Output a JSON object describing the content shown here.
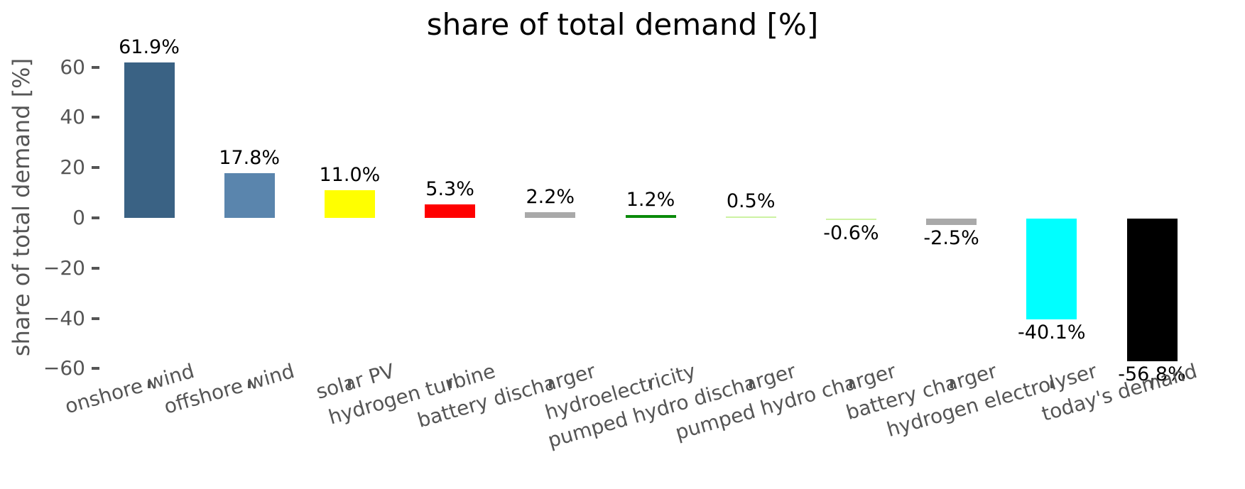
{
  "chart_data": {
    "type": "bar",
    "title": "share of total demand [%]",
    "ylabel": "share of total demand [%]",
    "xlabel": "",
    "categories": [
      "onshore wind",
      "offshore wind",
      "solar PV",
      "hydrogen turbine",
      "battery discharger",
      "hydroelectricity",
      "pumped hydro discharger",
      "pumped hydro charger",
      "battery charger",
      "hydrogen electrolyser",
      "today's demand"
    ],
    "values": [
      61.9,
      17.8,
      11.0,
      5.3,
      2.2,
      1.2,
      0.5,
      -0.6,
      -2.5,
      -40.1,
      -56.8
    ],
    "value_labels": [
      "61.9%",
      "17.8%",
      "11.0%",
      "5.3%",
      "2.2%",
      "1.2%",
      "0.5%",
      "-0.6%",
      "-2.5%",
      "-40.1%",
      "-56.8%"
    ],
    "bar_colors": [
      "#3A6284",
      "#5A85AD",
      "#FFFF00",
      "#FF0000",
      "#A9A9A9",
      "#0A8A0A",
      "#CDF2A3",
      "#CDF2A3",
      "#A9A9A9",
      "#00FFFF",
      "#000000"
    ],
    "yticks": [
      60,
      40,
      20,
      0,
      -20,
      -40,
      -60
    ],
    "ytick_labels": [
      "60",
      "40",
      "20",
      "0",
      "−20",
      "−40",
      "−60"
    ],
    "ylim": [
      -65,
      66
    ],
    "grid": false,
    "legend": "none",
    "colors": {
      "axis_text": "#555555",
      "value_label_text": "#000000",
      "background": "#FFFFFF"
    }
  }
}
